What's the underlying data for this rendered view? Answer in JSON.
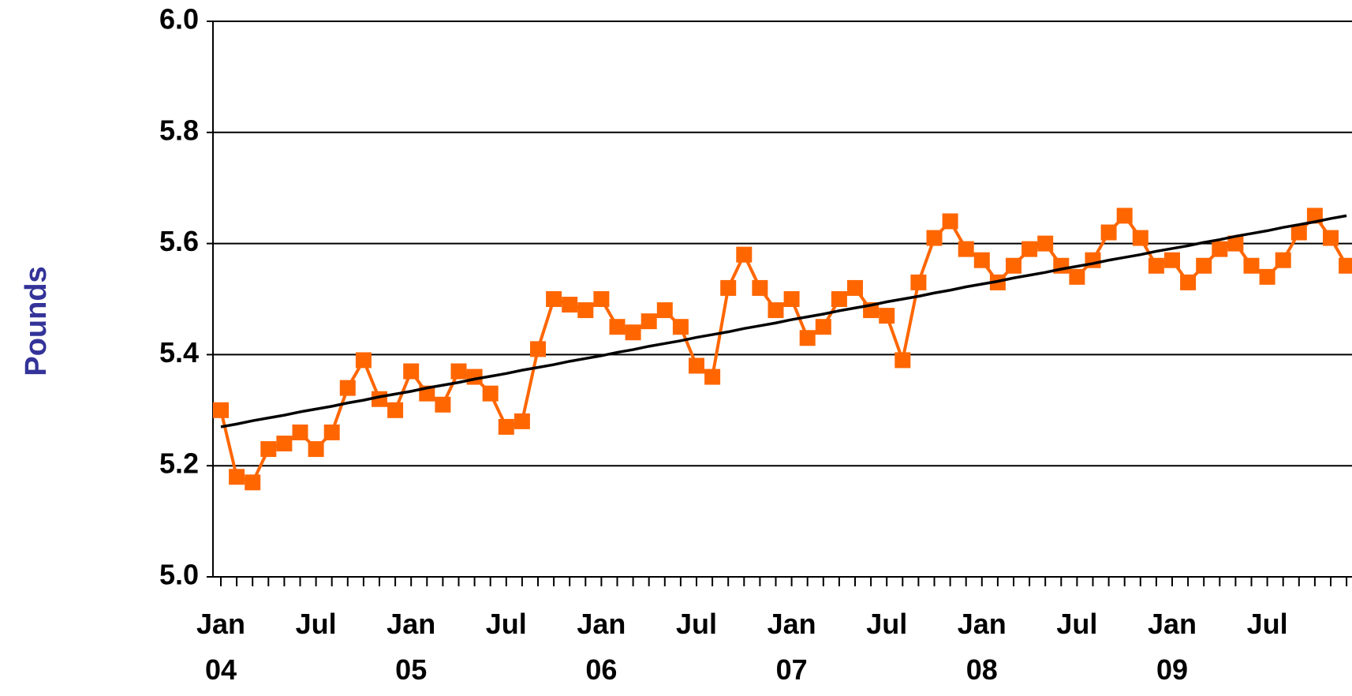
{
  "chart_data": {
    "type": "line",
    "y_label": "Pounds",
    "categories": [
      "Jan 04",
      null,
      null,
      null,
      null,
      null,
      "Jul",
      null,
      null,
      null,
      null,
      null,
      "Jan 05",
      null,
      null,
      null,
      null,
      null,
      "Jul",
      null,
      null,
      null,
      null,
      null,
      "Jan 06",
      null,
      null,
      null,
      null,
      null,
      "Jul",
      null,
      null,
      null,
      null,
      null,
      "Jan 07",
      null,
      null,
      null,
      null,
      null,
      "Jul",
      null,
      null,
      null,
      null,
      null,
      "Jan 08",
      null,
      null,
      null,
      null,
      null,
      "Jul",
      null,
      null,
      null,
      null,
      null,
      "Jan 09",
      null,
      null,
      null,
      null,
      null,
      "Jul",
      null,
      null,
      null,
      null,
      null
    ],
    "series": [
      {
        "color": "#ff6600",
        "marker": "square",
        "values": [
          5.3,
          5.18,
          5.17,
          5.23,
          5.24,
          5.26,
          5.23,
          5.26,
          5.34,
          5.39,
          5.32,
          5.3,
          5.37,
          5.33,
          5.31,
          5.37,
          5.36,
          5.33,
          5.27,
          5.28,
          5.41,
          5.5,
          5.49,
          5.48,
          5.5,
          5.45,
          5.44,
          5.46,
          5.48,
          5.45,
          5.38,
          5.36,
          5.52,
          5.58,
          5.52,
          5.48,
          5.5,
          5.43,
          5.45,
          5.5,
          5.52,
          5.48,
          5.47,
          5.39,
          5.53,
          5.61,
          5.64,
          5.59,
          5.57,
          5.53,
          5.56,
          5.59,
          5.6,
          5.56,
          5.54,
          5.57,
          5.62,
          5.65,
          5.61,
          5.56,
          5.57,
          5.53,
          5.56,
          5.59,
          5.6,
          5.56,
          5.54,
          5.57,
          5.62,
          5.65,
          5.61,
          5.56
        ]
      },
      {
        "color": "#000000",
        "marker": "none",
        "values": [
          5.27,
          5.275,
          5.281,
          5.286,
          5.291,
          5.297,
          5.302,
          5.307,
          5.313,
          5.318,
          5.324,
          5.329,
          5.334,
          5.34,
          5.345,
          5.35,
          5.356,
          5.361,
          5.366,
          5.372,
          5.377,
          5.382,
          5.388,
          5.393,
          5.398,
          5.404,
          5.409,
          5.415,
          5.42,
          5.425,
          5.431,
          5.436,
          5.441,
          5.447,
          5.452,
          5.457,
          5.463,
          5.468,
          5.473,
          5.479,
          5.484,
          5.489,
          5.495,
          5.5,
          5.505,
          5.511,
          5.516,
          5.522,
          5.527,
          5.532,
          5.538,
          5.543,
          5.548,
          5.554,
          5.559,
          5.564,
          5.57,
          5.575,
          5.58,
          5.586,
          5.591,
          5.596,
          5.602,
          5.607,
          5.613,
          5.618,
          5.623,
          5.629,
          5.634,
          5.639,
          5.645,
          5.65
        ]
      }
    ],
    "ylim": [
      5.0,
      6.0
    ],
    "yticks": [
      {
        "value": 5.0,
        "label": "5.0"
      },
      5.2,
      5.4,
      5.6,
      5.8,
      {
        "value": 6.0,
        "label": "6.0"
      }
    ],
    "grid": true
  }
}
